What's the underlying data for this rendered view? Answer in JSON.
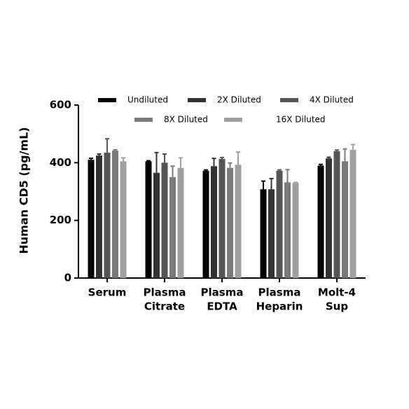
{
  "chart_data": {
    "type": "bar",
    "y_label": "Human CD5 (pg/mL)",
    "categories": [
      [
        "Serum"
      ],
      [
        "Plasma",
        "Citrate"
      ],
      [
        "Plasma",
        "EDTA"
      ],
      [
        "Plasma",
        "Heparin"
      ],
      [
        "Molt-4",
        "Sup"
      ]
    ],
    "series": [
      {
        "name": "Undiluted",
        "color": "#000000",
        "values": [
          410,
          405,
          372,
          308,
          390
        ],
        "errors": [
          5,
          2,
          3,
          28,
          4
        ]
      },
      {
        "name": "2X Diluted",
        "color": "#333333",
        "values": [
          425,
          365,
          388,
          308,
          415
        ],
        "errors": [
          5,
          70,
          27,
          37,
          4
        ]
      },
      {
        "name": "4X Diluted",
        "color": "#555555",
        "values": [
          435,
          400,
          413,
          372,
          440
        ],
        "errors": [
          48,
          30,
          5,
          3,
          4
        ]
      },
      {
        "name": "8X Diluted",
        "color": "#7a7a7a",
        "values": [
          442,
          350,
          382,
          332,
          405
        ],
        "errors": [
          3,
          38,
          17,
          44,
          43
        ]
      },
      {
        "name": "16X Diluted",
        "color": "#a0a0a0",
        "values": [
          405,
          382,
          393,
          330,
          445
        ],
        "errors": [
          12,
          35,
          44,
          2,
          18
        ]
      }
    ],
    "ylim": [
      0,
      600
    ],
    "yticks": [
      0,
      200,
      400,
      600
    ]
  }
}
